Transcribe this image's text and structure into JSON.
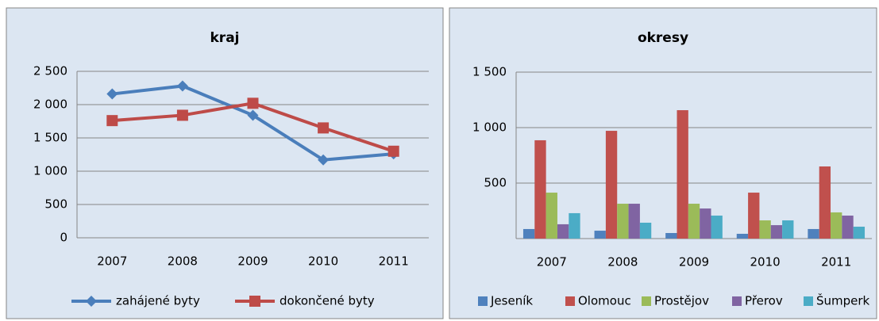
{
  "chart_data": [
    {
      "type": "line",
      "title": "kraj",
      "categories": [
        "2007",
        "2008",
        "2009",
        "2010",
        "2011"
      ],
      "series": [
        {
          "name": "zahájené byty",
          "color": "#4a7ebb",
          "marker": "diamond",
          "values": [
            2160,
            2280,
            1840,
            1170,
            1260
          ]
        },
        {
          "name": "dokončené byty",
          "color": "#be4b48",
          "marker": "square",
          "values": [
            1760,
            1840,
            2020,
            1650,
            1300
          ]
        }
      ],
      "ylim": [
        0,
        2500
      ],
      "yticks": [
        0,
        500,
        {
          "value": 1000,
          "label": "1 000"
        },
        {
          "value": 1500,
          "label": "1 500"
        },
        {
          "value": 2000,
          "label": "2 000"
        },
        {
          "value": 2500,
          "label": "2 500"
        }
      ],
      "grid": true,
      "legend": "bottom"
    },
    {
      "type": "bar",
      "title": "okresy",
      "categories": [
        "2007",
        "2008",
        "2009",
        "2010",
        "2011"
      ],
      "series": [
        {
          "name": "Jeseník",
          "color": "#4f81bd",
          "values": [
            86,
            71,
            50,
            43,
            86
          ]
        },
        {
          "name": "Olomouc",
          "color": "#c0504d",
          "values": [
            886,
            971,
            1157,
            414,
            650
          ]
        },
        {
          "name": "Prostějov",
          "color": "#9bbb59",
          "values": [
            414,
            314,
            314,
            164,
            236
          ]
        },
        {
          "name": "Přerov",
          "color": "#8064a2",
          "values": [
            129,
            314,
            271,
            121,
            207
          ]
        },
        {
          "name": "Šumperk",
          "color": "#4bacc6",
          "values": [
            229,
            143,
            207,
            164,
            107
          ]
        }
      ],
      "ylim": [
        0,
        1500
      ],
      "yticks": [
        500,
        {
          "value": 1000,
          "label": "1 000"
        },
        {
          "value": 1500,
          "label": "1 500"
        }
      ],
      "grid": true,
      "legend": "bottom"
    }
  ]
}
